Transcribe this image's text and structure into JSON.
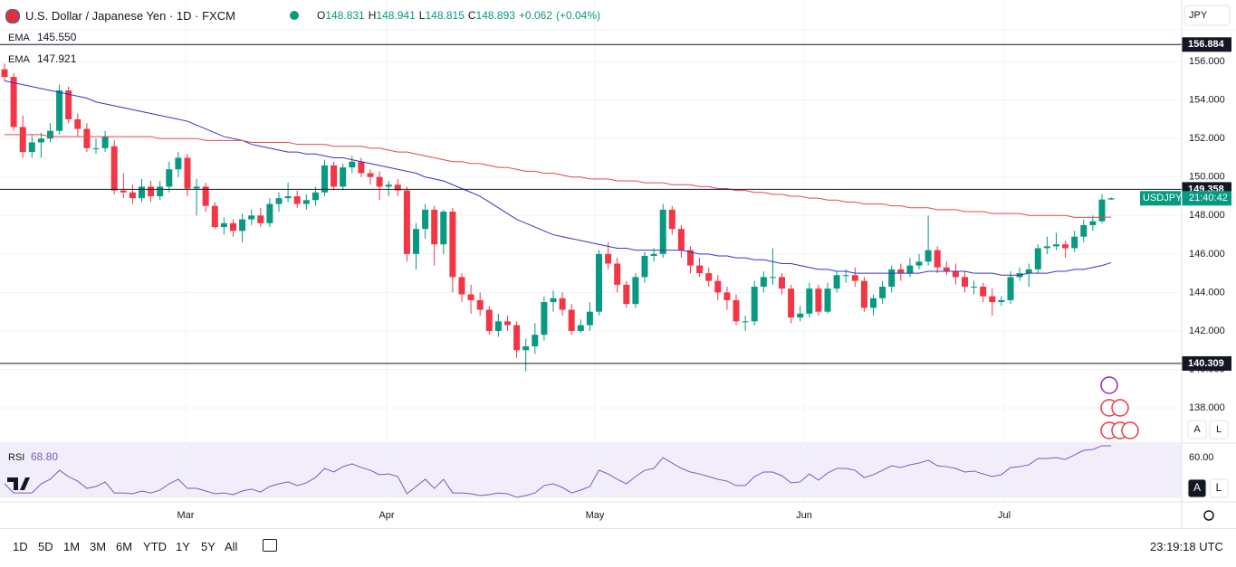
{
  "header": {
    "title": "U.S. Dollar / Japanese Yen · 1D · FXCM",
    "ohlc": [
      {
        "label": "O",
        "value": 148.831
      },
      {
        "label": "H",
        "value": 148.941
      },
      {
        "label": "L",
        "value": 148.815
      },
      {
        "label": "C",
        "value": 148.893
      }
    ],
    "change": "+0.062",
    "change_pct": "(+0.04%)"
  },
  "chart_data": {
    "type": "candlestick",
    "up_color": "#089981",
    "down_color": "#f23645",
    "grid": true,
    "ylim": [
      136.17,
      159.2
    ],
    "yticks": [
      {
        "value": 138,
        "label": "138.000"
      },
      {
        "value": 140,
        "label": "140.000"
      },
      {
        "value": 142,
        "label": "142.000"
      },
      {
        "value": 144,
        "label": "144.000"
      },
      {
        "value": 146,
        "label": "146.000"
      },
      {
        "value": 148,
        "label": "148.000"
      },
      {
        "value": 150,
        "label": "150.000"
      },
      {
        "value": 152,
        "label": "152.000"
      },
      {
        "value": 154,
        "label": "154.000"
      },
      {
        "value": 156,
        "label": "156.000"
      }
    ],
    "months": [
      "Mar",
      "Apr",
      "May",
      "Jun",
      "Jul"
    ],
    "currency": "JPY",
    "symbol": "USDJPY",
    "countdown": "21:40:42",
    "levels": [
      {
        "value": 156.884,
        "label": "156.884"
      },
      {
        "value": 149.358,
        "label": "149.358"
      },
      {
        "value": 140.309,
        "label": "140.309"
      }
    ],
    "candles": [
      [
        155.6,
        155.9,
        155.0,
        155.2
      ],
      [
        155.2,
        155.4,
        152.4,
        152.6
      ],
      [
        152.6,
        153.2,
        151.0,
        151.3
      ],
      [
        151.3,
        152.2,
        151.0,
        151.8
      ],
      [
        151.8,
        152.3,
        151.0,
        152.0
      ],
      [
        152.0,
        152.8,
        151.8,
        152.4
      ],
      [
        152.4,
        154.8,
        152.2,
        154.5
      ],
      [
        154.5,
        154.7,
        152.8,
        153.0
      ],
      [
        153.0,
        153.3,
        152.1,
        152.5
      ],
      [
        152.5,
        152.8,
        151.3,
        151.5
      ],
      [
        151.5,
        152.0,
        151.2,
        151.5
      ],
      [
        151.5,
        152.4,
        151.3,
        152.1
      ],
      [
        151.6,
        151.9,
        149.1,
        149.3
      ],
      [
        149.3,
        150.2,
        148.9,
        149.2
      ],
      [
        149.2,
        149.6,
        148.6,
        148.9
      ],
      [
        148.9,
        149.9,
        148.7,
        149.5
      ],
      [
        149.5,
        149.8,
        148.7,
        149.0
      ],
      [
        149.0,
        149.8,
        148.8,
        149.5
      ],
      [
        149.5,
        150.8,
        149.2,
        150.4
      ],
      [
        150.4,
        151.3,
        150.0,
        151.0
      ],
      [
        151.0,
        151.2,
        149.0,
        149.4
      ],
      [
        149.4,
        149.9,
        148.0,
        149.5
      ],
      [
        149.5,
        149.7,
        148.2,
        148.5
      ],
      [
        148.5,
        148.7,
        147.3,
        147.4
      ],
      [
        147.4,
        147.9,
        147.0,
        147.6
      ],
      [
        147.6,
        147.8,
        146.9,
        147.2
      ],
      [
        147.2,
        148.1,
        146.6,
        147.8
      ],
      [
        147.8,
        148.3,
        147.5,
        148.0
      ],
      [
        148.0,
        148.4,
        147.4,
        147.6
      ],
      [
        147.6,
        148.9,
        147.4,
        148.6
      ],
      [
        148.6,
        149.2,
        148.2,
        148.9
      ],
      [
        148.9,
        149.7,
        148.7,
        149.0
      ],
      [
        149.0,
        149.3,
        148.4,
        148.6
      ],
      [
        148.6,
        149.1,
        148.3,
        148.8
      ],
      [
        148.8,
        149.5,
        148.5,
        149.2
      ],
      [
        149.2,
        150.9,
        149.0,
        150.6
      ],
      [
        150.6,
        150.8,
        149.3,
        149.5
      ],
      [
        149.5,
        150.7,
        149.3,
        150.5
      ],
      [
        150.5,
        151.1,
        150.2,
        150.8
      ],
      [
        150.8,
        151.0,
        150.0,
        150.2
      ],
      [
        150.2,
        150.4,
        149.6,
        150.0
      ],
      [
        150.0,
        150.3,
        148.8,
        149.5
      ],
      [
        149.5,
        149.8,
        149.0,
        149.6
      ],
      [
        149.6,
        149.9,
        149.0,
        149.3
      ],
      [
        149.3,
        149.5,
        145.6,
        146.0
      ],
      [
        146.0,
        147.6,
        145.2,
        147.3
      ],
      [
        147.3,
        148.6,
        146.8,
        148.3
      ],
      [
        148.3,
        148.5,
        145.4,
        146.5
      ],
      [
        146.5,
        148.3,
        146.0,
        148.2
      ],
      [
        148.2,
        148.4,
        144.0,
        144.8
      ],
      [
        144.8,
        145.0,
        143.5,
        143.9
      ],
      [
        143.9,
        144.4,
        142.9,
        143.6
      ],
      [
        143.6,
        144.0,
        142.8,
        143.1
      ],
      [
        143.1,
        143.3,
        141.8,
        142.0
      ],
      [
        142.0,
        142.9,
        141.7,
        142.5
      ],
      [
        142.5,
        142.8,
        142.0,
        142.3
      ],
      [
        142.3,
        142.5,
        140.6,
        141.0
      ],
      [
        141.0,
        141.6,
        139.9,
        141.2
      ],
      [
        141.2,
        142.4,
        140.8,
        141.8
      ],
      [
        141.8,
        143.8,
        141.5,
        143.5
      ],
      [
        143.5,
        144.1,
        143.0,
        143.7
      ],
      [
        143.7,
        144.0,
        142.8,
        143.1
      ],
      [
        143.1,
        143.4,
        141.8,
        142.0
      ],
      [
        142.0,
        142.6,
        141.9,
        142.3
      ],
      [
        142.3,
        143.5,
        142.0,
        143.0
      ],
      [
        143.0,
        146.2,
        142.8,
        146.0
      ],
      [
        146.0,
        146.6,
        145.2,
        145.5
      ],
      [
        145.5,
        145.8,
        144.0,
        144.4
      ],
      [
        144.4,
        144.6,
        143.2,
        143.4
      ],
      [
        143.4,
        145.0,
        143.2,
        144.8
      ],
      [
        144.8,
        146.1,
        144.5,
        145.9
      ],
      [
        145.9,
        146.3,
        145.6,
        146.0
      ],
      [
        146.0,
        148.6,
        145.8,
        148.3
      ],
      [
        148.3,
        148.5,
        147.0,
        147.3
      ],
      [
        147.3,
        147.5,
        145.8,
        146.2
      ],
      [
        146.2,
        146.4,
        145.0,
        145.4
      ],
      [
        145.4,
        145.8,
        144.8,
        145.0
      ],
      [
        145.0,
        145.3,
        144.3,
        144.6
      ],
      [
        144.6,
        144.9,
        143.6,
        144.0
      ],
      [
        144.0,
        144.3,
        143.1,
        143.6
      ],
      [
        143.6,
        143.9,
        142.3,
        142.5
      ],
      [
        142.5,
        142.8,
        142.0,
        142.5
      ],
      [
        142.5,
        144.6,
        142.3,
        144.3
      ],
      [
        144.3,
        145.1,
        144.0,
        144.8
      ],
      [
        144.8,
        146.3,
        144.4,
        144.8
      ],
      [
        144.8,
        145.0,
        143.9,
        144.2
      ],
      [
        144.2,
        144.4,
        142.4,
        142.7
      ],
      [
        142.7,
        143.3,
        142.5,
        142.9
      ],
      [
        142.9,
        144.5,
        142.7,
        144.2
      ],
      [
        144.2,
        144.4,
        142.8,
        143.0
      ],
      [
        143.0,
        144.5,
        142.9,
        144.2
      ],
      [
        144.2,
        145.1,
        144.0,
        144.9
      ],
      [
        144.9,
        145.2,
        144.5,
        144.9
      ],
      [
        144.9,
        145.3,
        144.3,
        144.6
      ],
      [
        144.6,
        144.8,
        143.0,
        143.2
      ],
      [
        143.2,
        143.9,
        142.8,
        143.7
      ],
      [
        143.7,
        144.6,
        143.4,
        144.3
      ],
      [
        144.3,
        145.4,
        144.0,
        145.2
      ],
      [
        145.2,
        145.5,
        144.6,
        145.0
      ],
      [
        145.0,
        145.8,
        144.8,
        145.4
      ],
      [
        145.4,
        146.0,
        145.2,
        145.6
      ],
      [
        145.6,
        148.0,
        145.4,
        146.2
      ],
      [
        146.2,
        146.4,
        145.0,
        145.3
      ],
      [
        145.3,
        145.6,
        144.9,
        145.1
      ],
      [
        145.1,
        145.5,
        144.4,
        144.8
      ],
      [
        144.8,
        145.1,
        144.0,
        144.3
      ],
      [
        144.3,
        144.6,
        143.9,
        144.3
      ],
      [
        144.3,
        144.5,
        143.5,
        143.8
      ],
      [
        143.8,
        144.2,
        142.8,
        143.5
      ],
      [
        143.5,
        143.8,
        143.3,
        143.6
      ],
      [
        143.6,
        145.1,
        143.4,
        144.8
      ],
      [
        144.8,
        145.3,
        144.6,
        145.0
      ],
      [
        145.0,
        145.5,
        144.3,
        145.2
      ],
      [
        145.2,
        146.5,
        145.0,
        146.3
      ],
      [
        146.3,
        146.9,
        146.0,
        146.4
      ],
      [
        146.4,
        147.1,
        146.2,
        146.5
      ],
      [
        146.5,
        146.7,
        145.8,
        146.3
      ],
      [
        146.3,
        147.2,
        146.1,
        146.9
      ],
      [
        146.9,
        147.8,
        146.6,
        147.5
      ],
      [
        147.5,
        148.0,
        147.2,
        147.7
      ],
      [
        147.7,
        149.1,
        147.6,
        148.831
      ],
      [
        148.831,
        148.941,
        148.815,
        148.893
      ]
    ],
    "ema": [
      {
        "name": "EMA",
        "color": "#3535c8",
        "value": 145.55,
        "value_label": "145.550",
        "values": [
          155.0,
          154.9,
          154.8,
          154.7,
          154.6,
          154.5,
          154.4,
          154.3,
          154.2,
          154.1,
          153.9,
          153.8,
          153.7,
          153.6,
          153.5,
          153.4,
          153.3,
          153.2,
          153.1,
          153.0,
          152.9,
          152.7,
          152.5,
          152.3,
          152.1,
          152.0,
          151.9,
          151.7,
          151.6,
          151.5,
          151.4,
          151.3,
          151.3,
          151.2,
          151.2,
          151.1,
          151.0,
          151.0,
          150.9,
          150.8,
          150.7,
          150.6,
          150.5,
          150.4,
          150.3,
          150.2,
          150.0,
          149.9,
          149.8,
          149.6,
          149.4,
          149.2,
          149.0,
          148.7,
          148.4,
          148.1,
          147.8,
          147.6,
          147.4,
          147.2,
          147.0,
          146.9,
          146.8,
          146.7,
          146.6,
          146.5,
          146.4,
          146.3,
          146.3,
          146.2,
          146.2,
          146.2,
          146.2,
          146.2,
          146.2,
          146.1,
          146.0,
          146.0,
          145.9,
          145.9,
          145.8,
          145.8,
          145.7,
          145.7,
          145.6,
          145.5,
          145.5,
          145.4,
          145.3,
          145.2,
          145.2,
          145.1,
          145.1,
          145.0,
          145.0,
          145.0,
          145.0,
          145.0,
          145.0,
          145.0,
          145.0,
          145.1,
          145.1,
          145.1,
          145.1,
          145.1,
          145.0,
          145.0,
          145.0,
          144.9,
          144.9,
          144.9,
          145.0,
          145.0,
          145.0,
          145.1,
          145.1,
          145.2,
          145.2,
          145.3,
          145.4,
          145.55
        ]
      },
      {
        "name": "EMA",
        "color": "#e5484d",
        "value": 147.921,
        "value_label": "147.921",
        "values": [
          152.2,
          152.2,
          152.2,
          152.2,
          152.2,
          152.1,
          152.1,
          152.1,
          152.1,
          152.1,
          152.1,
          152.1,
          152.1,
          152.1,
          152.1,
          152.1,
          152.1,
          152.0,
          152.0,
          152.0,
          152.0,
          152.0,
          151.9,
          151.9,
          151.9,
          151.9,
          151.9,
          151.8,
          151.8,
          151.8,
          151.8,
          151.8,
          151.7,
          151.7,
          151.7,
          151.7,
          151.6,
          151.6,
          151.6,
          151.6,
          151.5,
          151.5,
          151.4,
          151.3,
          151.3,
          151.2,
          151.1,
          151.0,
          150.9,
          150.8,
          150.8,
          150.7,
          150.7,
          150.6,
          150.5,
          150.5,
          150.4,
          150.3,
          150.3,
          150.2,
          150.2,
          150.1,
          150.0,
          150.0,
          149.9,
          149.9,
          149.9,
          149.8,
          149.8,
          149.8,
          149.7,
          149.7,
          149.7,
          149.6,
          149.6,
          149.6,
          149.5,
          149.5,
          149.4,
          149.4,
          149.3,
          149.3,
          149.2,
          149.2,
          149.1,
          149.1,
          149.0,
          149.0,
          148.9,
          148.9,
          148.8,
          148.8,
          148.7,
          148.7,
          148.6,
          148.6,
          148.6,
          148.5,
          148.5,
          148.4,
          148.4,
          148.4,
          148.3,
          148.3,
          148.3,
          148.2,
          148.2,
          148.2,
          148.1,
          148.1,
          148.1,
          148.1,
          148.0,
          148.0,
          148.0,
          148.0,
          148.0,
          147.9,
          147.9,
          147.9,
          147.9,
          147.921
        ]
      }
    ]
  },
  "rsi": {
    "name": "RSI",
    "value_label": "68.80",
    "color": "#7e57c2",
    "ylim": [
      26.9,
      70.8
    ],
    "band": [
      30,
      70
    ],
    "yticks": [
      {
        "value": 60,
        "label": "60.00"
      }
    ],
    "values": [
      40.4,
      33.6,
      33.6,
      33.6,
      40.4,
      43.8,
      50.5,
      45.8,
      42.4,
      37.0,
      38.4,
      41.8,
      33.6,
      33.6,
      33.0,
      35.0,
      33.6,
      35.7,
      40.4,
      43.8,
      37.0,
      37.0,
      35.0,
      33.0,
      33.6,
      32.3,
      35.0,
      36.4,
      34.3,
      38.4,
      40.4,
      41.8,
      39.1,
      41.1,
      45.1,
      51.9,
      49.2,
      53.2,
      55.3,
      52.6,
      50.5,
      47.2,
      47.8,
      45.8,
      33.0,
      38.4,
      43.8,
      37.0,
      43.8,
      33.6,
      33.6,
      33.0,
      31.6,
      32.3,
      33.6,
      33.0,
      30.3,
      31.6,
      33.6,
      39.1,
      40.4,
      37.7,
      33.6,
      35.7,
      38.4,
      50.5,
      47.8,
      43.8,
      40.4,
      45.8,
      50.5,
      51.9,
      60.0,
      55.9,
      51.9,
      49.2,
      47.8,
      45.8,
      43.8,
      42.4,
      39.1,
      39.1,
      45.8,
      49.2,
      49.2,
      46.5,
      41.1,
      41.8,
      47.8,
      43.1,
      48.5,
      51.9,
      51.9,
      50.5,
      45.1,
      47.2,
      50.5,
      53.9,
      52.6,
      54.6,
      55.9,
      58.0,
      53.9,
      53.2,
      51.9,
      49.2,
      49.9,
      47.8,
      45.8,
      47.2,
      52.6,
      53.2,
      54.6,
      59.3,
      59.3,
      60.0,
      58.6,
      62.0,
      65.4,
      66.1,
      68.8,
      68.8
    ]
  },
  "scale_buttons": [
    "A",
    "L"
  ],
  "toolbar": {
    "ranges": [
      "1D",
      "5D",
      "1M",
      "3M",
      "6M",
      "YTD",
      "1Y",
      "5Y",
      "All"
    ],
    "clock": "23:19:18 UTC"
  }
}
